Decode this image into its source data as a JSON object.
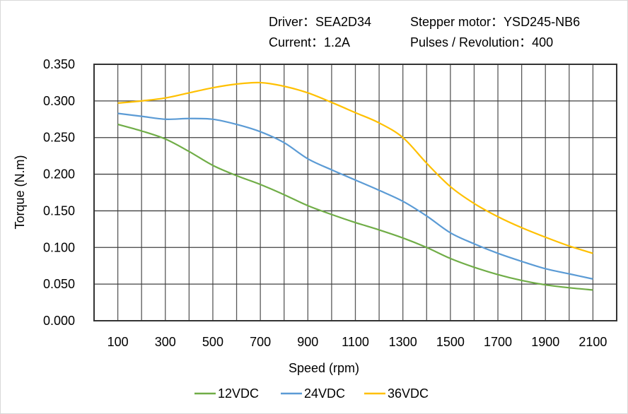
{
  "header": {
    "driver": "Driver：SEA2D34",
    "motor": "Stepper motor：YSD245-NB6",
    "current": "Current：1.2A",
    "pulses": "Pulses / Revolution：400"
  },
  "chart_data": {
    "type": "line",
    "title": "",
    "xlabel": "Speed  (rpm)",
    "ylabel": "Torque (N.m)",
    "xlim": [
      0,
      2200
    ],
    "ylim": [
      0,
      0.35
    ],
    "grid": true,
    "legend_position": "bottom",
    "x_tick_labels": [
      "100",
      "300",
      "500",
      "700",
      "900",
      "1100",
      "1300",
      "1500",
      "1700",
      "1900",
      "2100"
    ],
    "y_tick_labels": [
      "0.000",
      "0.050",
      "0.100",
      "0.150",
      "0.200",
      "0.250",
      "0.300",
      "0.350"
    ],
    "x": [
      100,
      200,
      300,
      400,
      500,
      600,
      700,
      800,
      900,
      1000,
      1100,
      1200,
      1300,
      1400,
      1500,
      1600,
      1700,
      1800,
      1900,
      2000,
      2100
    ],
    "series": [
      {
        "name": "12VDC",
        "color": "#70ad47",
        "values": [
          0.268,
          0.259,
          0.248,
          0.231,
          0.212,
          0.198,
          0.186,
          0.172,
          0.157,
          0.145,
          0.134,
          0.124,
          0.113,
          0.1,
          0.085,
          0.073,
          0.063,
          0.055,
          0.049,
          0.045,
          0.042
        ]
      },
      {
        "name": "24VDC",
        "color": "#5b9bd5",
        "values": [
          0.283,
          0.279,
          0.275,
          0.276,
          0.275,
          0.268,
          0.258,
          0.243,
          0.221,
          0.206,
          0.192,
          0.178,
          0.163,
          0.143,
          0.12,
          0.105,
          0.092,
          0.081,
          0.071,
          0.064,
          0.057
        ]
      },
      {
        "name": "36VDC",
        "color": "#ffc000",
        "values": [
          0.297,
          0.3,
          0.304,
          0.311,
          0.318,
          0.323,
          0.325,
          0.32,
          0.311,
          0.298,
          0.284,
          0.27,
          0.25,
          0.215,
          0.183,
          0.16,
          0.142,
          0.127,
          0.114,
          0.102,
          0.092
        ]
      }
    ]
  }
}
